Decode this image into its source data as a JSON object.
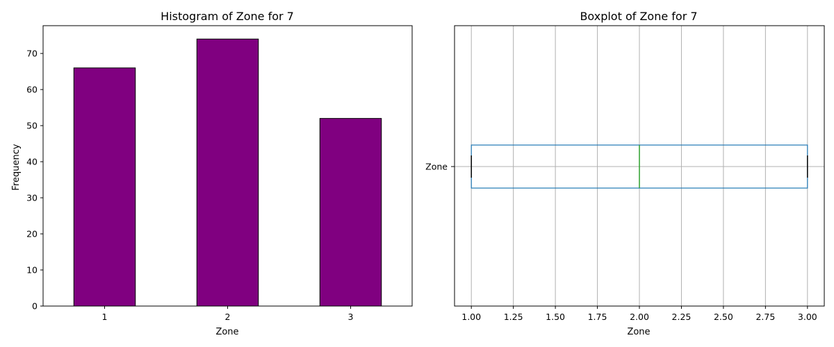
{
  "chart_data": [
    {
      "type": "bar",
      "title": "Histogram of Zone for 7",
      "xlabel": "Zone",
      "ylabel": "Frequency",
      "categories": [
        "1",
        "2",
        "3"
      ],
      "values": [
        66,
        74,
        52
      ],
      "ylim": [
        0,
        77.7
      ],
      "yticks": [
        0,
        10,
        20,
        30,
        40,
        50,
        60,
        70
      ],
      "bar_color": "#800080",
      "edge_color": "#000000",
      "grid": false
    },
    {
      "type": "boxplot",
      "title": "Boxplot of Zone for 7",
      "xlabel": "Zone",
      "category": "Zone",
      "min": 1.0,
      "q1": 1.0,
      "median": 2.0,
      "q3": 3.0,
      "max": 3.0,
      "xlim": [
        0.9,
        3.1
      ],
      "xticks": [
        "1.00",
        "1.25",
        "1.50",
        "1.75",
        "2.00",
        "2.25",
        "2.50",
        "2.75",
        "3.00"
      ],
      "box_color": "#1f77b4",
      "median_color": "#2ca02c",
      "grid": true
    }
  ]
}
